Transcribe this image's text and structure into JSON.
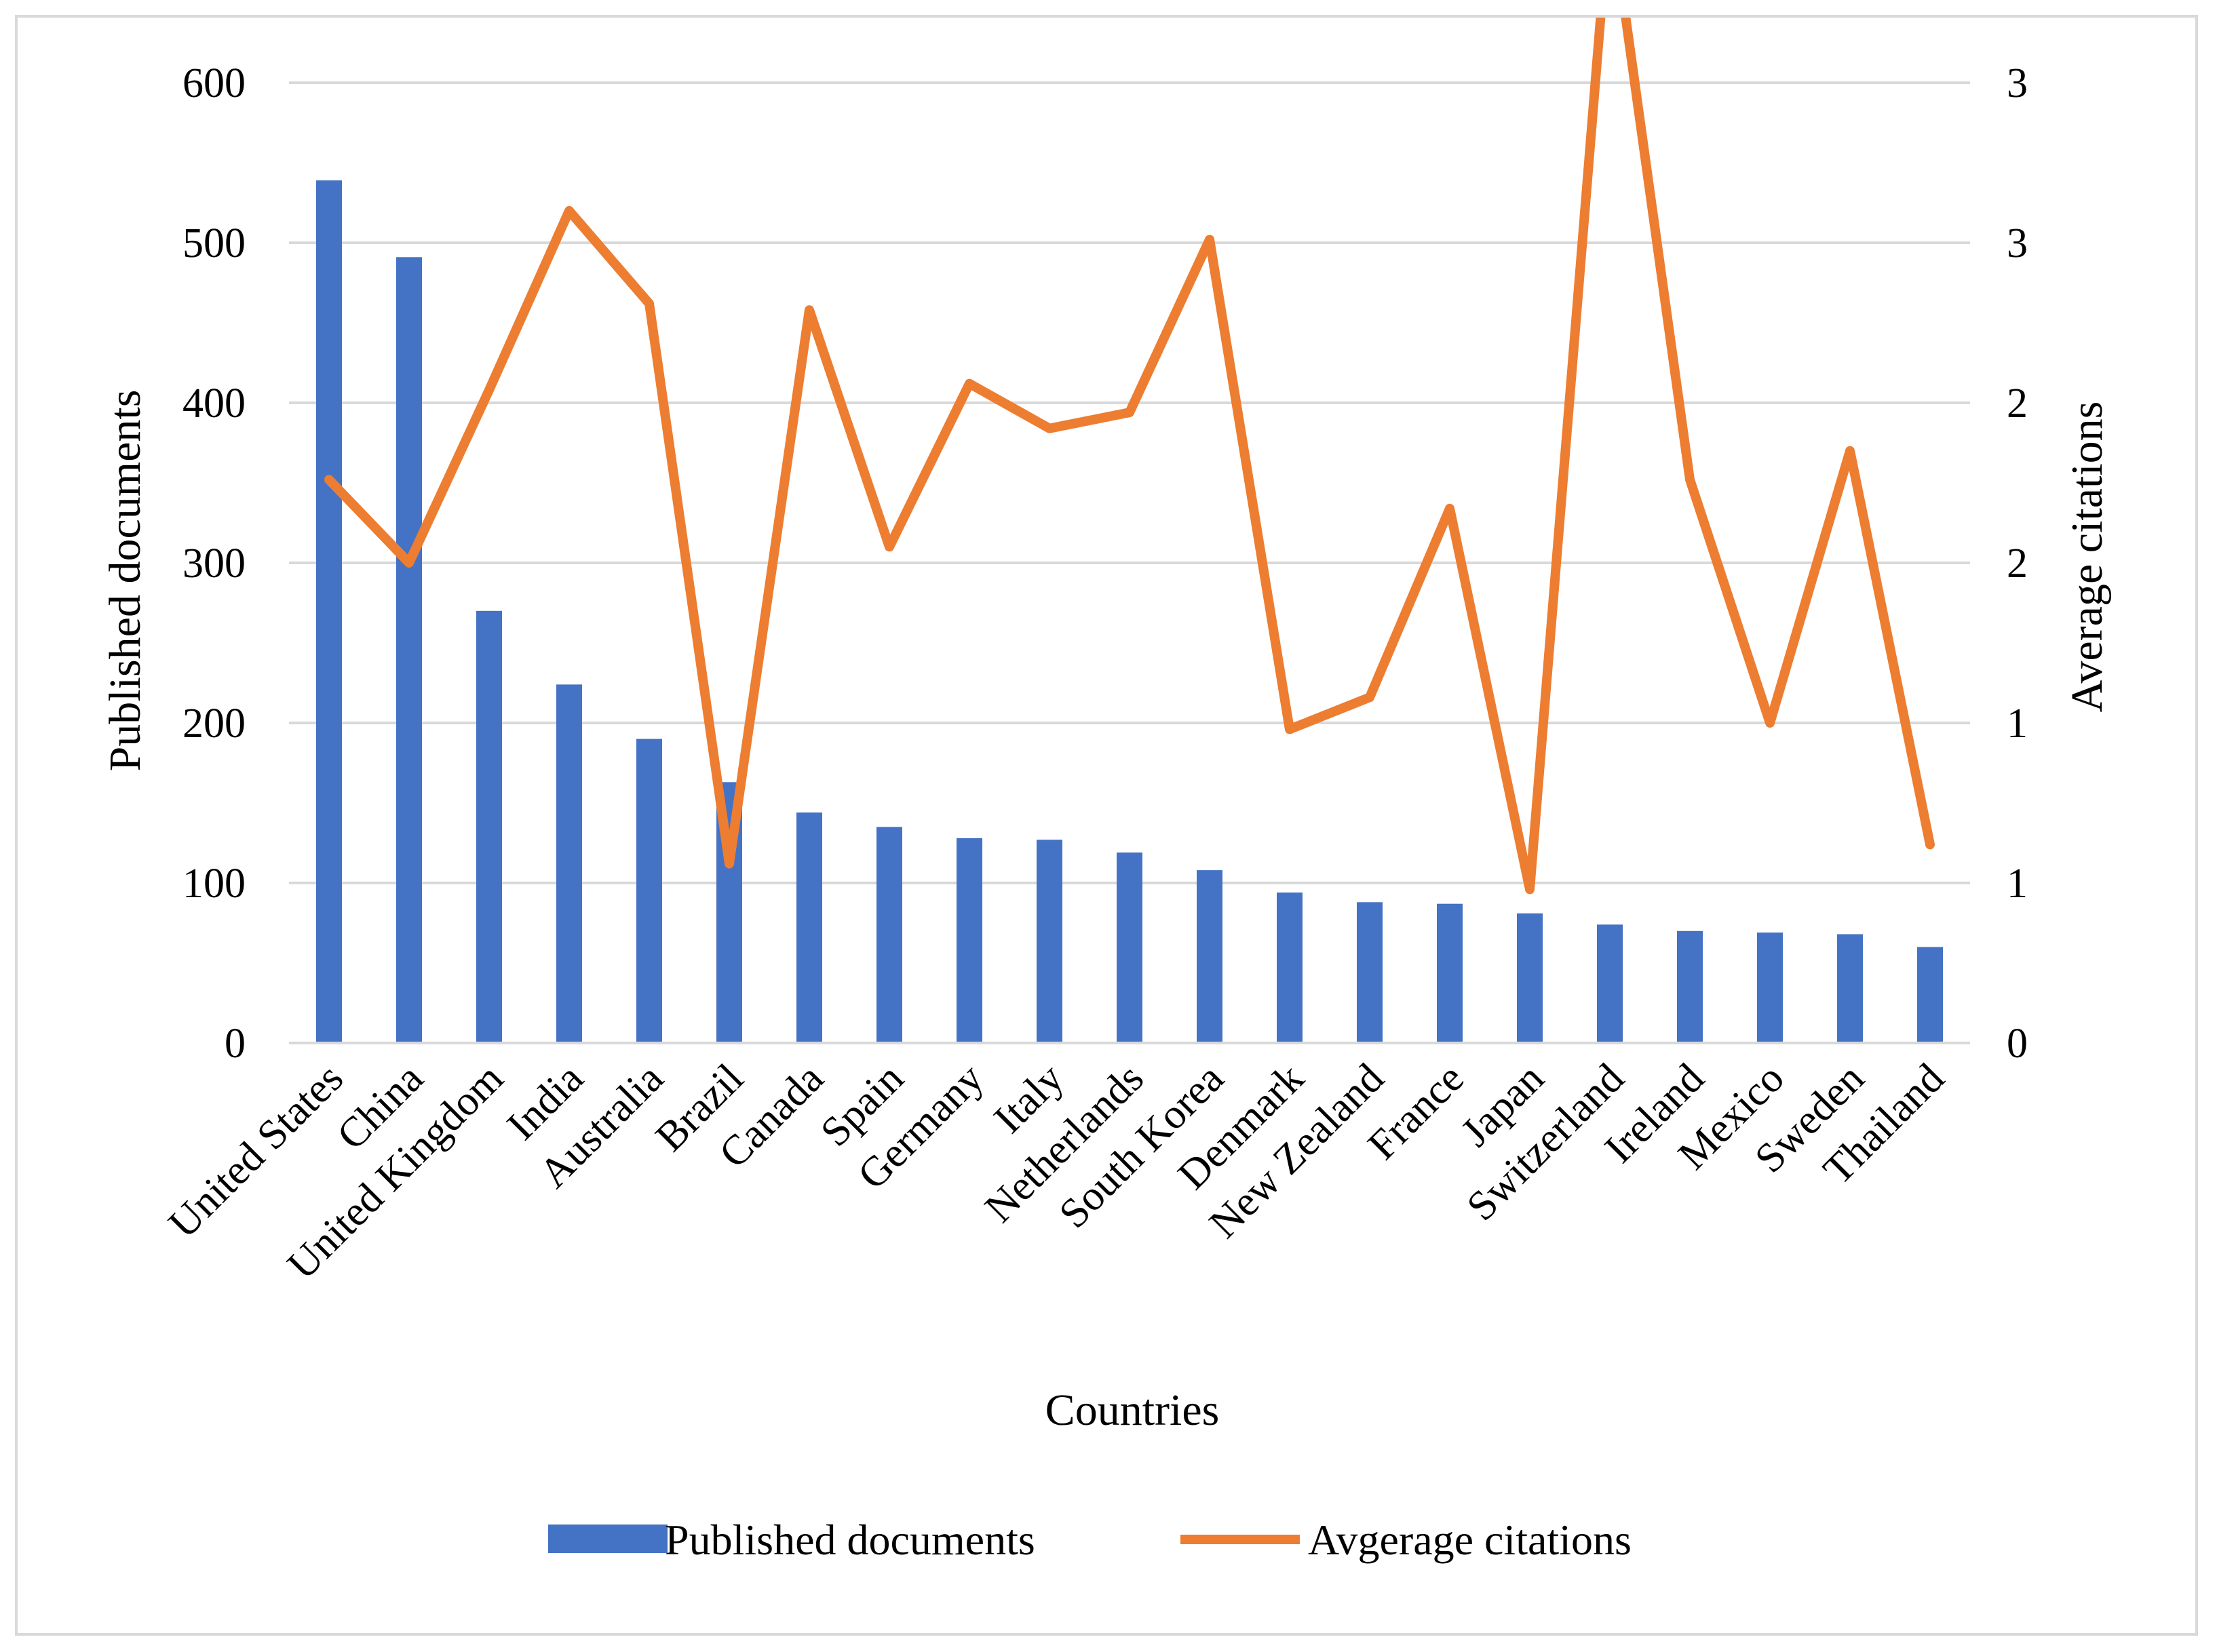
{
  "chart_data": {
    "type": "bar+line",
    "title": "",
    "xlabel": "Countries",
    "ylabel_left": "Published documents",
    "ylabel_right": "Average citations",
    "ylim_left": [
      0,
      600
    ],
    "ylim_right": [
      0,
      3
    ],
    "yticks_left": [
      "0",
      "100",
      "200",
      "300",
      "400",
      "500",
      "600"
    ],
    "yticks_right": [
      "0",
      "1",
      "1",
      "2",
      "2",
      "3",
      "3"
    ],
    "grid": true,
    "legend_position": "bottom",
    "categories": [
      "United States",
      "China",
      "United Kingdom",
      "India",
      "Australia",
      "Brazil",
      "Canada",
      "Spain",
      "Germany",
      "Italy",
      "Netherlands",
      "South Korea",
      "Denmark",
      "New Zealand",
      "France",
      "Japan",
      "Switzerland",
      "Ireland",
      "Mexico",
      "Sweden",
      "Thailand"
    ],
    "series": [
      {
        "name": "Published documents",
        "type": "bar",
        "axis": "left",
        "color": "#4472C4",
        "values": [
          539,
          491,
          270,
          224,
          190,
          163,
          144,
          135,
          128,
          127,
          119,
          108,
          94,
          88,
          87,
          81,
          74,
          70,
          69,
          68,
          60
        ]
      },
      {
        "name": "Avgerage citations",
        "type": "line",
        "axis": "right",
        "color": "#ED7D31",
        "values": [
          1.76,
          1.5,
          2.04,
          2.6,
          2.31,
          0.56,
          2.29,
          1.55,
          2.06,
          1.92,
          1.97,
          2.51,
          0.98,
          1.08,
          1.67,
          0.48,
          3.56,
          1.76,
          1.0,
          1.85,
          0.62
        ]
      }
    ]
  }
}
